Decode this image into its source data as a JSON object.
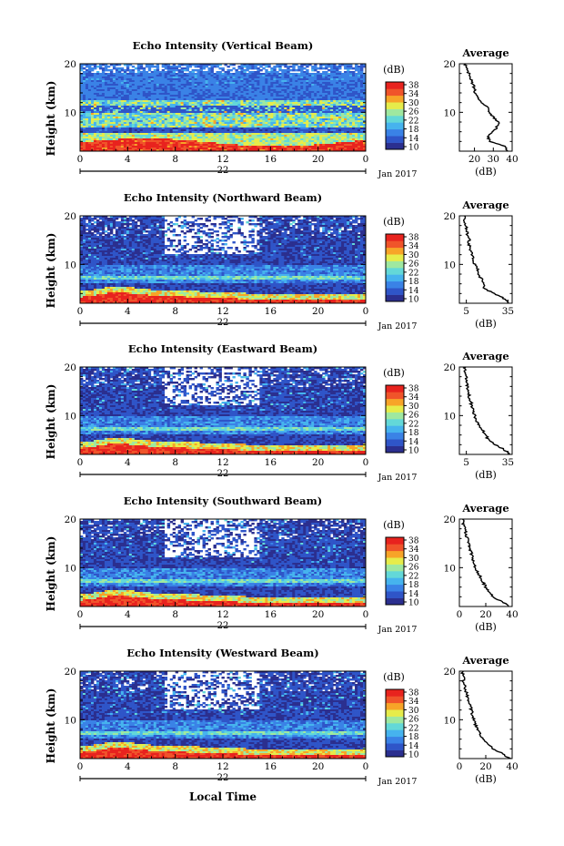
{
  "figure": {
    "colorbar_unit": "(dB)",
    "colorbar_ticks": [
      "38",
      "34",
      "30",
      "26",
      "22",
      "18",
      "14",
      "10"
    ],
    "date_label": "Jan 2017",
    "day_label": "22",
    "x_tick_labels": [
      "0",
      "4",
      "8",
      "12",
      "16",
      "20",
      "0"
    ],
    "y_tick_labels": [
      "20",
      "10"
    ],
    "y_axis_label": "Height (km)",
    "x_axis_label": "Local Time",
    "average_title": "Average",
    "average_xlabel": "(dB)",
    "colormap": [
      "#2b2f8f",
      "#2f55c8",
      "#3a82e6",
      "#46b3ee",
      "#63d8d8",
      "#9fe8a0",
      "#e6ec4a",
      "#f7a428",
      "#f0542a",
      "#e8231e"
    ]
  },
  "chart_data": [
    {
      "type": "heatmap",
      "title": "Echo Intensity (Vertical Beam)",
      "xlim": [
        0,
        24
      ],
      "ylim": [
        2,
        20
      ],
      "clim": [
        10,
        38
      ],
      "profile": {
        "xticks": [
          "20",
          "30",
          "40"
        ],
        "xlim": [
          12,
          40
        ],
        "heights": [
          2,
          3,
          4,
          5,
          6,
          7,
          8,
          9,
          10,
          11,
          12,
          13,
          14,
          15,
          16,
          17,
          18,
          19,
          20
        ],
        "values": [
          38,
          36,
          28,
          27,
          30,
          32,
          33,
          30,
          28,
          27,
          24,
          22,
          20,
          20,
          19,
          18,
          17,
          16,
          15
        ]
      }
    },
    {
      "type": "heatmap",
      "title": "Echo Intensity (Northward Beam)",
      "xlim": [
        0,
        24
      ],
      "ylim": [
        2,
        20
      ],
      "clim": [
        10,
        38
      ],
      "profile": {
        "xticks": [
          "5",
          "35"
        ],
        "xlim": [
          0,
          38
        ],
        "heights": [
          2,
          3,
          4,
          5,
          6,
          7,
          8,
          9,
          10,
          11,
          12,
          13,
          14,
          15,
          16,
          17,
          18,
          19,
          20
        ],
        "values": [
          36,
          32,
          25,
          18,
          17,
          16,
          13,
          13,
          11,
          10,
          9,
          8,
          7,
          7,
          6,
          5,
          5,
          4,
          4
        ]
      }
    },
    {
      "type": "heatmap",
      "title": "Echo Intensity (Eastward Beam)",
      "xlim": [
        0,
        24
      ],
      "ylim": [
        2,
        20
      ],
      "clim": [
        10,
        38
      ],
      "profile": {
        "xticks": [
          "5",
          "35"
        ],
        "xlim": [
          0,
          38
        ],
        "heights": [
          2,
          3,
          4,
          5,
          6,
          7,
          8,
          9,
          10,
          11,
          12,
          13,
          14,
          15,
          16,
          17,
          18,
          19,
          20
        ],
        "values": [
          37,
          32,
          26,
          21,
          19,
          17,
          14,
          12,
          11,
          10,
          9,
          8,
          7,
          6,
          6,
          5,
          5,
          4,
          4
        ]
      }
    },
    {
      "type": "heatmap",
      "title": "Echo Intensity (Southward Beam)",
      "xlim": [
        0,
        24
      ],
      "ylim": [
        2,
        20
      ],
      "clim": [
        10,
        38
      ],
      "profile": {
        "xticks": [
          "0",
          "20",
          "40"
        ],
        "xlim": [
          0,
          40
        ],
        "heights": [
          2,
          3,
          4,
          5,
          6,
          7,
          8,
          9,
          10,
          11,
          12,
          13,
          14,
          15,
          16,
          17,
          18,
          19,
          20
        ],
        "values": [
          38,
          32,
          26,
          22,
          20,
          18,
          16,
          14,
          12,
          11,
          10,
          9,
          8,
          7,
          6,
          5,
          4,
          3,
          3
        ]
      }
    },
    {
      "type": "heatmap",
      "title": "Echo Intensity (Westward Beam)",
      "xlim": [
        0,
        24
      ],
      "ylim": [
        2,
        20
      ],
      "clim": [
        10,
        38
      ],
      "profile": {
        "xticks": [
          "0",
          "20",
          "40"
        ],
        "xlim": [
          0,
          40
        ],
        "heights": [
          2,
          3,
          4,
          5,
          6,
          7,
          8,
          9,
          10,
          11,
          12,
          13,
          14,
          15,
          16,
          17,
          18,
          19,
          20
        ],
        "values": [
          38,
          33,
          25,
          22,
          18,
          16,
          14,
          12,
          11,
          10,
          9,
          8,
          7,
          6,
          5,
          4,
          3,
          3,
          2
        ]
      }
    }
  ]
}
